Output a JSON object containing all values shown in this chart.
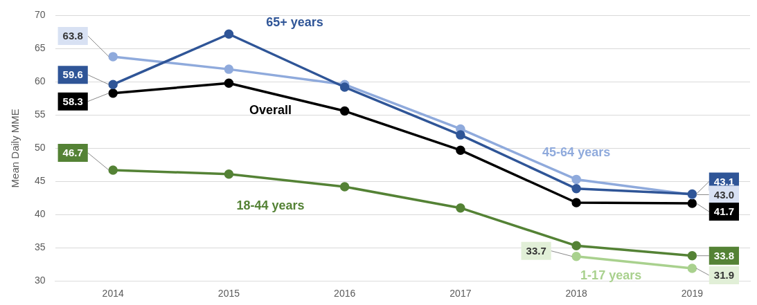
{
  "chart_data": {
    "type": "line",
    "ylabel": "Mean Daily MME",
    "categories": [
      "2014",
      "2015",
      "2016",
      "2017",
      "2018",
      "2019"
    ],
    "ylim": [
      30,
      70
    ],
    "yticks": [
      30,
      35,
      40,
      45,
      50,
      55,
      60,
      65,
      70
    ],
    "grid": "y",
    "legend": false,
    "marker": "circle",
    "line_style": "solid",
    "series": [
      {
        "name": "65+ years",
        "color": "#2f5597",
        "values": [
          59.6,
          67.2,
          59.2,
          52.0,
          43.9,
          43.1
        ],
        "value_labels": [
          "59.6",
          null,
          null,
          null,
          null,
          "43.1"
        ]
      },
      {
        "name": "45-64 years",
        "color": "#8faadc",
        "values": [
          63.8,
          61.9,
          59.6,
          52.9,
          45.3,
          43.0
        ],
        "value_labels": [
          "63.8",
          null,
          null,
          null,
          null,
          "43.0"
        ]
      },
      {
        "name": "Overall",
        "color": "#000000",
        "values": [
          58.3,
          59.8,
          55.6,
          49.7,
          41.8,
          41.7
        ],
        "value_labels": [
          "58.3",
          null,
          null,
          null,
          null,
          "41.7"
        ]
      },
      {
        "name": "18-44 years",
        "color": "#548235",
        "values": [
          46.7,
          46.1,
          44.2,
          41.0,
          35.3,
          33.8
        ],
        "value_labels": [
          "46.7",
          null,
          null,
          null,
          null,
          "33.8"
        ]
      },
      {
        "name": "1-17 years",
        "color": "#a9d18e",
        "values": [
          null,
          null,
          null,
          null,
          33.7,
          31.9
        ],
        "value_labels": [
          null,
          null,
          null,
          null,
          "33.7",
          "31.9"
        ]
      }
    ]
  }
}
